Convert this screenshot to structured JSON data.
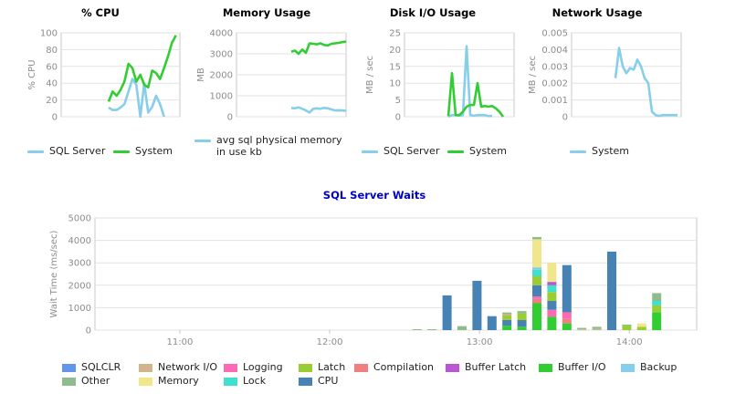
{
  "colors": {
    "sql_server": "#87CEEB",
    "system": "#32CD32"
  },
  "cpu_legend": [
    "SQL Server",
    "System"
  ],
  "memory_legend": [
    "avg sql physical memory in use kb"
  ],
  "disk_legend": [
    "SQL Server",
    "System"
  ],
  "network_legend": [
    "System"
  ],
  "chart_data": [
    {
      "id": "cpu",
      "type": "line",
      "title": "% CPU",
      "ylabel": "% CPU",
      "ylim": [
        0,
        100
      ],
      "yticks": [
        0,
        20,
        40,
        60,
        80,
        100
      ],
      "xlim": [
        0,
        30
      ],
      "series": [
        {
          "name": "SQL Server",
          "color": "#87CEEB",
          "x": [
            12,
            13,
            14,
            15,
            16,
            17,
            18,
            19,
            20,
            21,
            22,
            23,
            24,
            25,
            26
          ],
          "y": [
            11,
            8,
            8,
            11,
            15,
            30,
            45,
            38,
            0,
            40,
            5,
            12,
            25,
            15,
            0
          ]
        },
        {
          "name": "System",
          "color": "#32CD32",
          "x": [
            12,
            13,
            14,
            15,
            16,
            17,
            18,
            19,
            20,
            21,
            22,
            23,
            24,
            25,
            26,
            27,
            28,
            29
          ],
          "y": [
            18,
            30,
            25,
            32,
            42,
            63,
            58,
            42,
            50,
            38,
            35,
            55,
            52,
            45,
            58,
            72,
            88,
            97
          ]
        }
      ]
    },
    {
      "id": "memory",
      "type": "line",
      "title": "Memory Usage",
      "ylabel": "MB",
      "ylim": [
        0,
        4000
      ],
      "yticks": [
        0,
        1000,
        2000,
        3000,
        4000
      ],
      "xlim": [
        0,
        30
      ],
      "series": [
        {
          "name": "avg sql physical memory in use kb",
          "color": "#87CEEB",
          "x": [
            15,
            16,
            17,
            18,
            19,
            20,
            21,
            22,
            23,
            24,
            25,
            26,
            27,
            28,
            29,
            30
          ],
          "y": [
            420,
            400,
            450,
            380,
            300,
            200,
            380,
            400,
            380,
            420,
            400,
            350,
            300,
            310,
            300,
            280
          ]
        },
        {
          "name": "System",
          "color": "#32CD32",
          "x": [
            15,
            16,
            17,
            18,
            19,
            20,
            21,
            22,
            23,
            24,
            25,
            26,
            27,
            28,
            29,
            30
          ],
          "y": [
            3100,
            3150,
            3000,
            3200,
            3050,
            3500,
            3480,
            3450,
            3500,
            3420,
            3400,
            3480,
            3500,
            3520,
            3560,
            3580
          ]
        }
      ]
    },
    {
      "id": "disk",
      "type": "line",
      "title": "Disk I/O Usage",
      "ylabel": "MB / sec",
      "ylim": [
        0,
        25
      ],
      "yticks": [
        0,
        5,
        10,
        15,
        20,
        25
      ],
      "xlim": [
        0,
        30
      ],
      "series": [
        {
          "name": "SQL Server",
          "color": "#87CEEB",
          "x": [
            12,
            13,
            14,
            15,
            16,
            17,
            18,
            19,
            20,
            21,
            22,
            23,
            24
          ],
          "y": [
            0,
            0.5,
            0.5,
            0.3,
            0.5,
            21,
            0.5,
            0.3,
            0.5,
            0.5,
            0.5,
            0.2,
            0.3
          ]
        },
        {
          "name": "System",
          "color": "#32CD32",
          "x": [
            12,
            13,
            14,
            15,
            16,
            17,
            18,
            19,
            20,
            21,
            22,
            23,
            24,
            25,
            26,
            27
          ],
          "y": [
            0.2,
            13,
            0.5,
            0.5,
            1.5,
            3,
            3.5,
            3.5,
            10,
            3,
            3.2,
            3,
            3.2,
            2.5,
            1.5,
            0
          ]
        }
      ]
    },
    {
      "id": "network",
      "type": "line",
      "title": "Network Usage",
      "ylabel": "MB / sec",
      "ylim": [
        0,
        0.005
      ],
      "yticks": [
        0,
        0.001,
        0.002,
        0.003,
        0.004,
        0.005
      ],
      "xlim": [
        0,
        30
      ],
      "series": [
        {
          "name": "System",
          "color": "#87CEEB",
          "x": [
            12,
            13,
            14,
            15,
            16,
            17,
            18,
            19,
            20,
            21,
            22,
            23,
            24,
            25,
            26,
            27,
            28,
            29
          ],
          "y": [
            0.0023,
            0.0041,
            0.003,
            0.0026,
            0.0029,
            0.0028,
            0.0034,
            0.003,
            0.0023,
            0.002,
            0.0003,
            0.0001,
            5e-05,
            0.0001,
            0.0001,
            0.0001,
            0.0001,
            0.0001
          ]
        }
      ]
    },
    {
      "id": "waits",
      "type": "bar",
      "title": "SQL Server Waits",
      "ylabel": "Wait Time (ms/sec)",
      "ylim": [
        0,
        5000
      ],
      "yticks": [
        0,
        1000,
        2000,
        3000,
        4000,
        5000
      ],
      "xlim_minutes": [
        626,
        867
      ],
      "xticks": [
        {
          "label": "11:00",
          "t": 660
        },
        {
          "label": "12:00",
          "t": 720
        },
        {
          "label": "13:00",
          "t": 780
        },
        {
          "label": "14:00",
          "t": 840
        }
      ],
      "categories": [
        "SQLCLR",
        "Network I/O",
        "Logging",
        "Latch",
        "Compilation",
        "Buffer Latch",
        "Buffer I/O",
        "Backup",
        "Other",
        "Memory",
        "Lock",
        "CPU"
      ],
      "category_colors": {
        "SQLCLR": "#6495ED",
        "Network I/O": "#D2B48C",
        "Logging": "#FF69B4",
        "Latch": "#9ACD32",
        "Compilation": "#F08080",
        "Buffer Latch": "#BA55D3",
        "Buffer I/O": "#32CD32",
        "Backup": "#87CEEB",
        "Other": "#8FBC8F",
        "Memory": "#F0E68C",
        "Lock": "#40E0D0",
        "CPU": "#4682B4"
      },
      "bars": [
        {
          "t": 755,
          "stacks": {
            "Other": 40
          }
        },
        {
          "t": 761,
          "stacks": {
            "Other": 40
          }
        },
        {
          "t": 767,
          "stacks": {
            "CPU": 1550
          }
        },
        {
          "t": 773,
          "stacks": {
            "Other": 180
          }
        },
        {
          "t": 779,
          "stacks": {
            "CPU": 2200
          }
        },
        {
          "t": 785,
          "stacks": {
            "CPU": 620
          }
        },
        {
          "t": 791,
          "stacks": {
            "Buffer I/O": 200,
            "Latch": 200,
            "CPU": 250,
            "Network I/O": 80,
            "Other": 60
          }
        },
        {
          "t": 797,
          "stacks": {
            "Buffer I/O": 150,
            "CPU": 300,
            "Latch": 300,
            "Other": 100
          }
        },
        {
          "t": 803,
          "stacks": {
            "Buffer I/O": 1200,
            "Compilation": 200,
            "Logging": 100,
            "CPU": 500,
            "Latch": 400,
            "Lock": 300,
            "Backup": 100,
            "Memory": 1250,
            "Other": 100
          }
        },
        {
          "t": 809,
          "stacks": {
            "Buffer I/O": 600,
            "Latch": 400,
            "CPU": 400,
            "Lock": 300,
            "Logging": 300,
            "Buffer Latch": 150,
            "Memory": 850
          }
        },
        {
          "t": 815,
          "stacks": {
            "Buffer I/O": 300,
            "CPU": 2100,
            "Compilation": 200,
            "Logging": 300
          }
        },
        {
          "t": 821,
          "stacks": {
            "Other": 70,
            "Network I/O": 30
          }
        },
        {
          "t": 827,
          "stacks": {
            "Other": 100,
            "Network I/O": 50
          }
        },
        {
          "t": 833,
          "stacks": {
            "CPU": 3500
          }
        },
        {
          "t": 839,
          "stacks": {
            "Latch": 200,
            "Other": 50
          }
        },
        {
          "t": 845,
          "stacks": {
            "Latch": 150,
            "Memory": 150
          }
        },
        {
          "t": 851,
          "stacks": {
            "Buffer I/O": 800,
            "Latch": 300,
            "Lock": 200,
            "Other": 350
          }
        }
      ]
    }
  ]
}
